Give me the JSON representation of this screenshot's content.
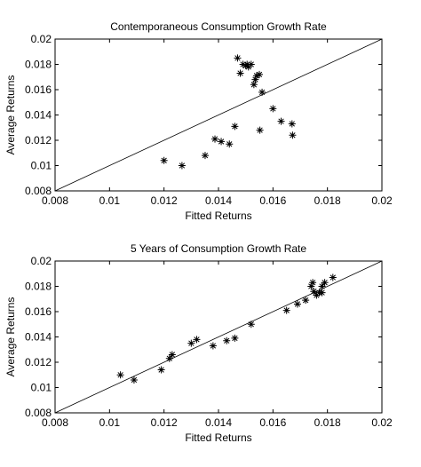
{
  "chart_data": [
    {
      "type": "scatter",
      "title": "Contemporaneous Consumption Growth Rate",
      "x_label": "Fitted Returns",
      "y_label": "Average Returns",
      "xlim": [
        0.008,
        0.02
      ],
      "ylim": [
        0.008,
        0.02
      ],
      "xticks": [
        0.008,
        0.01,
        0.012,
        0.014,
        0.016,
        0.018,
        0.02
      ],
      "yticks": [
        0.008,
        0.01,
        0.012,
        0.014,
        0.016,
        0.018,
        0.02
      ],
      "color": "#000000",
      "x": [
        0.012,
        0.01266,
        0.01351,
        0.01387,
        0.0141,
        0.0144,
        0.0146,
        0.0147,
        0.0148,
        0.0149,
        0.015,
        0.01505,
        0.0151,
        0.0152,
        0.0153,
        0.01535,
        0.0154,
        0.0155,
        0.01552,
        0.0156,
        0.016,
        0.0163,
        0.0167,
        0.01672
      ],
      "values": [
        0.0104,
        0.01,
        0.0108,
        0.0121,
        0.0119,
        0.0117,
        0.0131,
        0.0185,
        0.0173,
        0.018,
        0.0179,
        0.018,
        0.0178,
        0.018,
        0.0164,
        0.0168,
        0.0171,
        0.0172,
        0.0128,
        0.0158,
        0.0145,
        0.0135,
        0.0133,
        0.0124
      ]
    },
    {
      "type": "scatter",
      "title": "5 Years of Consumption Growth Rate",
      "x_label": "Fitted Returns",
      "y_label": "Average Returns",
      "xlim": [
        0.008,
        0.02
      ],
      "ylim": [
        0.008,
        0.02
      ],
      "xticks": [
        0.008,
        0.01,
        0.012,
        0.014,
        0.016,
        0.018,
        0.02
      ],
      "yticks": [
        0.008,
        0.01,
        0.012,
        0.014,
        0.016,
        0.018,
        0.02
      ],
      "color": "#000000",
      "x": [
        0.0104,
        0.0109,
        0.0119,
        0.0122,
        0.0123,
        0.013,
        0.0132,
        0.0138,
        0.0143,
        0.0146,
        0.0152,
        0.0165,
        0.0169,
        0.0172,
        0.0174,
        0.01746,
        0.0175,
        0.0176,
        0.0177,
        0.0178,
        0.0179,
        0.0178,
        0.0182
      ],
      "values": [
        0.011,
        0.0106,
        0.0114,
        0.0123,
        0.0126,
        0.0135,
        0.0138,
        0.0133,
        0.0137,
        0.0139,
        0.015,
        0.0161,
        0.0166,
        0.0169,
        0.018,
        0.0183,
        0.0176,
        0.0173,
        0.0175,
        0.018,
        0.0183,
        0.0175,
        0.0187
      ]
    }
  ]
}
